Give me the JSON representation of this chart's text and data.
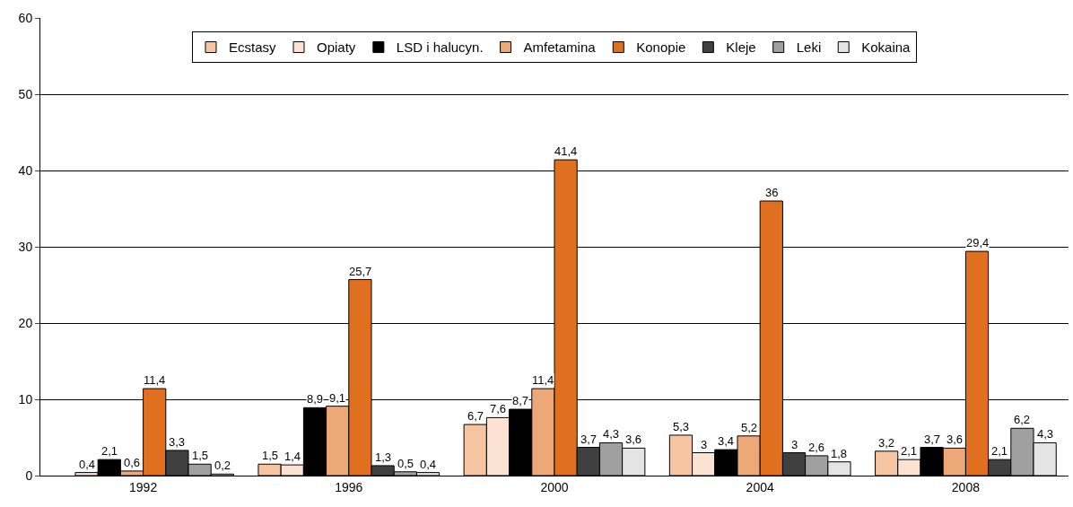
{
  "chart_data": {
    "type": "bar",
    "categories": [
      "1992",
      "1996",
      "2000",
      "2004",
      "2008"
    ],
    "ylim": [
      0,
      60
    ],
    "yticks": [
      0,
      10,
      20,
      30,
      40,
      50,
      60
    ],
    "grid": "y",
    "legend": "top",
    "series": [
      {
        "name": "Ecstasy",
        "color": "#f5c4a0",
        "values": [
          null,
          1.5,
          6.7,
          5.3,
          3.2
        ],
        "value_labels": [
          null,
          "1,5",
          "6,7",
          "5,3",
          "3,2"
        ]
      },
      {
        "name": "Opiaty",
        "color": "#fbe2d2",
        "values": [
          0.4,
          1.4,
          7.6,
          3,
          2.1
        ],
        "value_labels": [
          "0,4",
          "1,4",
          "7,6",
          "3",
          "2,1"
        ]
      },
      {
        "name": "LSD i halucyn.",
        "color": "#000000",
        "values": [
          2.1,
          8.9,
          8.7,
          3.4,
          3.7
        ],
        "value_labels": [
          "2,1",
          "8,9",
          "8,7",
          "3,4",
          "3,7"
        ]
      },
      {
        "name": "Amfetamina",
        "color": "#eda878",
        "values": [
          0.6,
          9.1,
          11.4,
          5.2,
          3.6
        ],
        "value_labels": [
          "0,6",
          "9,1",
          "11,4",
          "5,2",
          "3,6"
        ]
      },
      {
        "name": "Konopie",
        "color": "#e07020",
        "values": [
          11.4,
          25.7,
          41.4,
          36,
          29.4
        ],
        "value_labels": [
          "11,4",
          "25,7",
          "41,4",
          "36",
          "29,4"
        ]
      },
      {
        "name": "Kleje",
        "color": "#404040",
        "values": [
          3.3,
          1.3,
          3.7,
          3,
          2.1
        ],
        "value_labels": [
          "3,3",
          "1,3",
          "3,7",
          "3",
          "2,1"
        ]
      },
      {
        "name": "Leki",
        "color": "#a0a0a0",
        "values": [
          1.5,
          0.5,
          4.3,
          2.6,
          6.2
        ],
        "value_labels": [
          "1,5",
          "0,5",
          "4,3",
          "2,6",
          "6,2"
        ]
      },
      {
        "name": "Kokaina",
        "color": "#e4e4e4",
        "values": [
          0.2,
          0.4,
          3.6,
          1.8,
          4.3
        ],
        "value_labels": [
          "0,2",
          "0,4",
          "3,6",
          "1,8",
          "4,3"
        ]
      }
    ]
  }
}
